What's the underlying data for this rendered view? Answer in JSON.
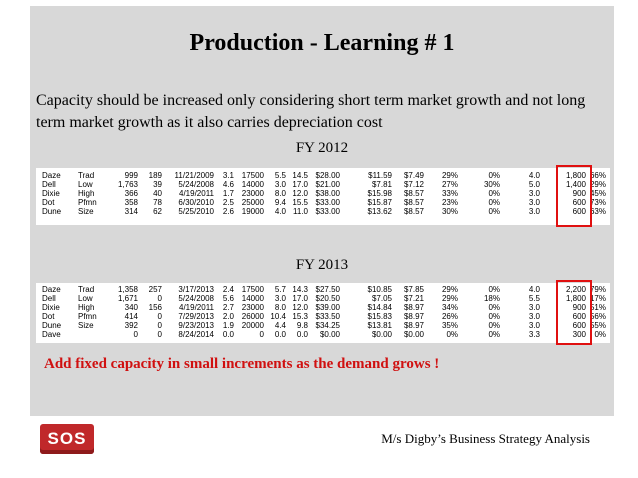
{
  "title": "Production - Learning # 1",
  "body_text": "Capacity should be increased only considering short term market growth and not long term market growth as it also carries depreciation cost",
  "fy2012": {
    "label": "FY 2012",
    "rows": [
      [
        "Daze",
        "Trad",
        "999",
        "189",
        "11/21/2009",
        "3.1",
        "17500",
        "5.5",
        "14.5",
        "$28.00",
        "$11.59",
        "$7.49",
        "29%",
        "0%",
        "4.0",
        "1,800",
        "66%"
      ],
      [
        "Dell",
        "Low",
        "1,763",
        "39",
        "5/24/2008",
        "4.6",
        "14000",
        "3.0",
        "17.0",
        "$21.00",
        "$7.81",
        "$7.12",
        "27%",
        "30%",
        "5.0",
        "1,400",
        "29%"
      ],
      [
        "Dixie",
        "High",
        "366",
        "40",
        "4/19/2011",
        "1.7",
        "23000",
        "8.0",
        "12.0",
        "$38.00",
        "$15.98",
        "$8.57",
        "33%",
        "0%",
        "3.0",
        "900",
        "45%"
      ],
      [
        "Dot",
        "Pfmn",
        "358",
        "78",
        "6/30/2010",
        "2.5",
        "25000",
        "9.4",
        "15.5",
        "$33.00",
        "$15.87",
        "$8.57",
        "23%",
        "0%",
        "3.0",
        "600",
        "73%"
      ],
      [
        "Dune",
        "Size",
        "314",
        "62",
        "5/25/2010",
        "2.6",
        "19000",
        "4.0",
        "11.0",
        "$33.00",
        "$13.62",
        "$8.57",
        "30%",
        "0%",
        "3.0",
        "600",
        "63%"
      ]
    ]
  },
  "fy2013": {
    "label": "FY 2013",
    "rows": [
      [
        "Daze",
        "Trad",
        "1,358",
        "257",
        "3/17/2013",
        "2.4",
        "17500",
        "5.7",
        "14.3",
        "$27.50",
        "$10.85",
        "$7.85",
        "29%",
        "0%",
        "4.0",
        "2,200",
        "79%"
      ],
      [
        "Dell",
        "Low",
        "1,671",
        "0",
        "5/24/2008",
        "5.6",
        "14000",
        "3.0",
        "17.0",
        "$20.50",
        "$7.05",
        "$7.21",
        "29%",
        "18%",
        "5.5",
        "1,800",
        "17%"
      ],
      [
        "Dixie",
        "High",
        "340",
        "156",
        "4/19/2011",
        "2.7",
        "23000",
        "8.0",
        "12.0",
        "$39.00",
        "$14.84",
        "$8.97",
        "34%",
        "0%",
        "3.0",
        "900",
        "51%"
      ],
      [
        "Dot",
        "Pfmn",
        "414",
        "0",
        "7/29/2013",
        "2.0",
        "26000",
        "10.4",
        "15.3",
        "$33.50",
        "$15.83",
        "$8.97",
        "26%",
        "0%",
        "3.0",
        "600",
        "56%"
      ],
      [
        "Dune",
        "Size",
        "392",
        "0",
        "9/23/2013",
        "1.9",
        "20000",
        "4.4",
        "9.8",
        "$34.25",
        "$13.81",
        "$8.97",
        "35%",
        "0%",
        "3.0",
        "600",
        "55%"
      ],
      [
        "Dave",
        "",
        "0",
        "0",
        "8/24/2014",
        "0.0",
        "0",
        "0.0",
        "0.0",
        "$0.00",
        "$0.00",
        "$0.00",
        "0%",
        "0%",
        "3.3",
        "300",
        "0%"
      ]
    ]
  },
  "note": "Add fixed capacity in small increments as the demand grows !",
  "logo_text": "SOS",
  "footer_text": "M/s Digby’s Business Strategy Analysis",
  "colors": {
    "highlight": "#e01010",
    "note": "#d01010",
    "logo": "#c0282a"
  }
}
